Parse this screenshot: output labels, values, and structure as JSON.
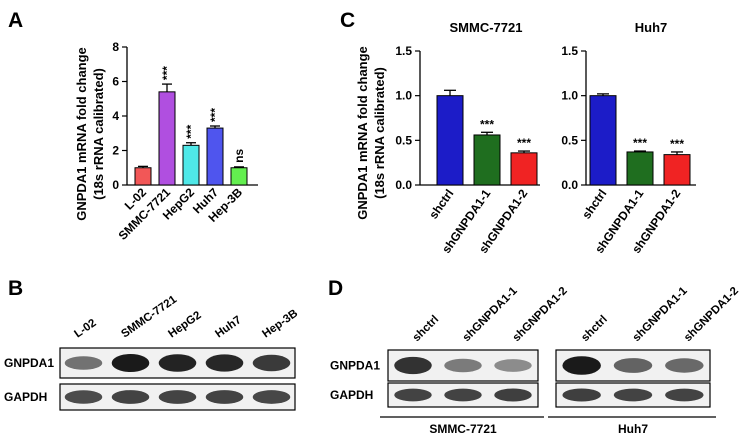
{
  "panels": {
    "a": "A",
    "b": "B",
    "c": "C",
    "d": "D"
  },
  "chart_data": [
    {
      "id": "panelA",
      "type": "bar",
      "ylabel_lines": [
        "GNPDA1 mRNA fold change",
        "(18s rRNA calibrated)"
      ],
      "categories": [
        "L-02",
        "SMMC-7721",
        "HepG2",
        "Huh7",
        "Hep-3B"
      ],
      "values": [
        1.0,
        5.4,
        2.3,
        3.3,
        1.0
      ],
      "errors": [
        0.08,
        0.45,
        0.15,
        0.12,
        0.05
      ],
      "significance": [
        "",
        "***",
        "***",
        "***",
        "ns"
      ],
      "colors": [
        "#f25757",
        "#b04fe0",
        "#4fe8e8",
        "#4f55ee",
        "#63ef4f"
      ],
      "ylim": [
        0,
        8
      ],
      "yticks": [
        0,
        2,
        4,
        6,
        8
      ],
      "grid": false
    },
    {
      "id": "panelC1",
      "type": "bar",
      "title": "SMMC-7721",
      "ylabel_lines": [
        "GNPDA1 mRNA fold change",
        "(18s rRNA calibrated)"
      ],
      "categories": [
        "shctrl",
        "shGNPDA1-1",
        "shGNPDA1-2"
      ],
      "values": [
        1.0,
        0.56,
        0.36
      ],
      "errors": [
        0.06,
        0.03,
        0.02
      ],
      "significance": [
        "",
        "***",
        "***"
      ],
      "colors": [
        "#1c1cc8",
        "#1f6e1f",
        "#f02323"
      ],
      "ylim": [
        0,
        1.5
      ],
      "yticks": [
        0.0,
        0.5,
        1.0,
        1.5
      ],
      "grid": false
    },
    {
      "id": "panelC2",
      "type": "bar",
      "title": "Huh7",
      "categories": [
        "shctrl",
        "shGNPDA1-1",
        "shGNPDA1-2"
      ],
      "values": [
        1.0,
        0.37,
        0.34
      ],
      "errors": [
        0.02,
        0.01,
        0.03
      ],
      "significance": [
        "",
        "***",
        "***"
      ],
      "colors": [
        "#1c1cc8",
        "#1f6e1f",
        "#f02323"
      ],
      "ylim": [
        0,
        1.5
      ],
      "yticks": [
        0.0,
        0.5,
        1.0,
        1.5
      ],
      "grid": false
    }
  ],
  "blot_b": {
    "lanes": [
      "L-02",
      "SMMC-7721",
      "HepG2",
      "Huh7",
      "Hep-3B"
    ],
    "rows": [
      {
        "label": "GNPDA1",
        "intensity": [
          0.45,
          1.0,
          0.95,
          0.92,
          0.8
        ]
      },
      {
        "label": "GAPDH",
        "intensity": [
          0.7,
          0.75,
          0.75,
          0.75,
          0.72
        ]
      }
    ]
  },
  "blot_d": {
    "groups": [
      {
        "name": "SMMC-7721",
        "lanes": [
          "shctrl",
          "shGNPDA1-1",
          "shGNPDA1-2"
        ]
      },
      {
        "name": "Huh7",
        "lanes": [
          "shctrl",
          "shGNPDA1-1",
          "shGNPDA1-2"
        ]
      }
    ],
    "rows": [
      {
        "label": "GNPDA1",
        "intensity": [
          [
            0.85,
            0.4,
            0.3
          ],
          [
            1.0,
            0.55,
            0.5
          ]
        ]
      },
      {
        "label": "GAPDH",
        "intensity": [
          [
            0.75,
            0.75,
            0.78
          ],
          [
            0.78,
            0.75,
            0.75
          ]
        ]
      }
    ]
  }
}
